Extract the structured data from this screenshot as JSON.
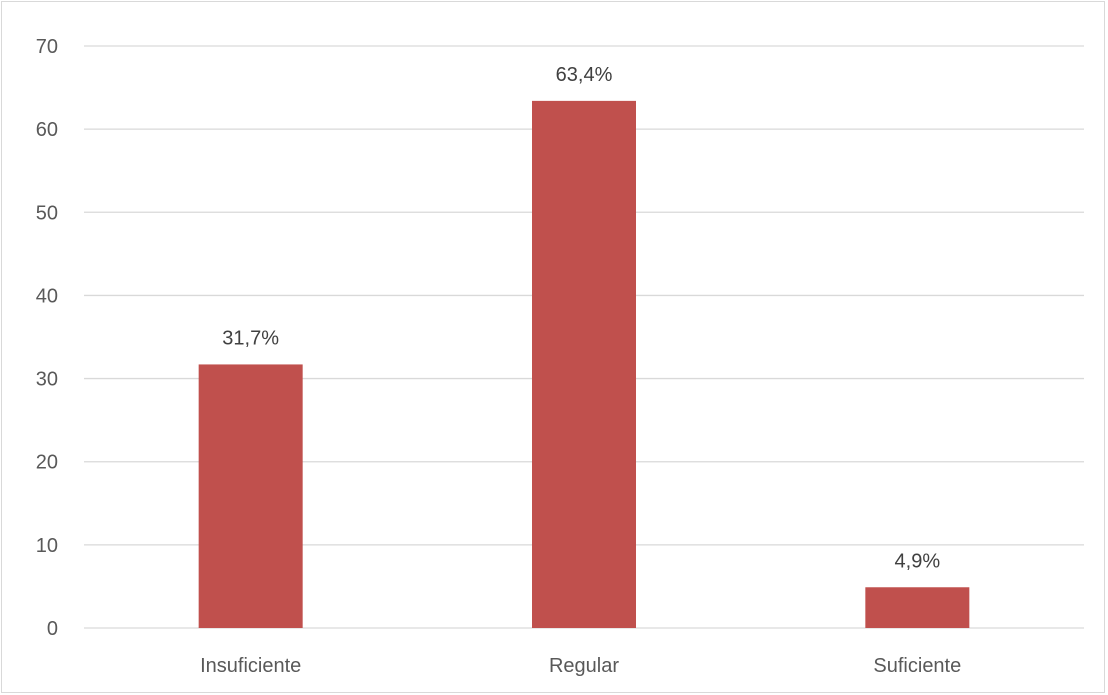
{
  "chart_data": {
    "type": "bar",
    "categories": [
      "Insuficiente",
      "Regular",
      "Suficiente"
    ],
    "values": [
      31.7,
      63.4,
      4.9
    ],
    "data_labels": [
      "31,7%",
      "63,4%",
      "4,9%"
    ],
    "title": "",
    "xlabel": "",
    "ylabel": "",
    "ylim": [
      0,
      70
    ],
    "yticks": [
      0,
      10,
      20,
      30,
      40,
      50,
      60,
      70
    ],
    "ytick_labels": [
      "0",
      "10",
      "20",
      "30",
      "40",
      "50",
      "60",
      "70"
    ],
    "grid": true,
    "legend": "none",
    "bar_color": "#c0504d",
    "grid_color": "#d9d9d9"
  }
}
